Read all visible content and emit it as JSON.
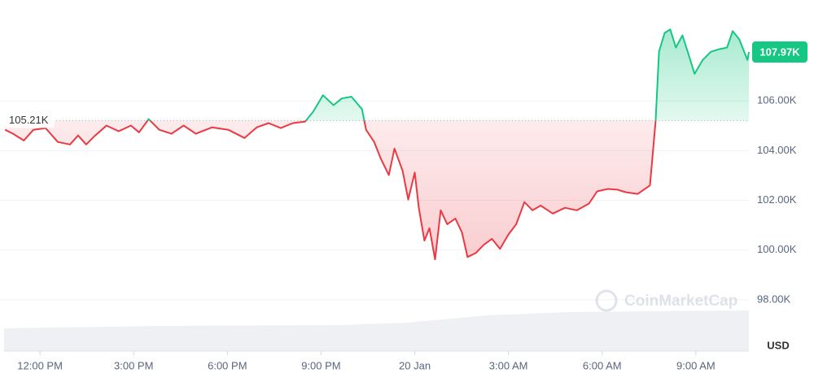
{
  "chart_data": {
    "type": "line",
    "x": [
      -1.12,
      -0.86,
      -0.52,
      -0.21,
      0.18,
      0.57,
      0.96,
      1.22,
      1.48,
      1.74,
      2.13,
      2.52,
      2.91,
      3.17,
      3.48,
      3.82,
      4.21,
      4.6,
      4.99,
      5.51,
      6.03,
      6.55,
      6.94,
      7.32,
      7.71,
      8.1,
      8.49,
      8.75,
      9.06,
      9.4,
      9.66,
      9.97,
      10.31,
      10.44,
      10.7,
      10.91,
      11.17,
      11.35,
      11.61,
      11.79,
      12.0,
      12.13,
      12.31,
      12.47,
      12.65,
      12.83,
      13.04,
      13.3,
      13.51,
      13.69,
      13.95,
      14.21,
      14.47,
      14.73,
      14.99,
      15.25,
      15.51,
      15.77,
      16.03,
      16.42,
      16.81,
      17.19,
      17.58,
      17.84,
      18.18,
      18.49,
      18.75,
      19.14,
      19.53,
      19.71,
      19.82,
      20.0,
      20.18,
      20.36,
      20.57,
      20.78,
      20.96,
      21.22,
      21.48,
      21.74,
      22.0,
      22.18,
      22.39,
      22.65,
      22.7
    ],
    "values": [
      104840,
      104680,
      104410,
      104840,
      104910,
      104350,
      104250,
      104610,
      104250,
      104580,
      105010,
      104780,
      105010,
      104740,
      105270,
      104840,
      104680,
      105010,
      104680,
      104940,
      104840,
      104510,
      104940,
      105110,
      104910,
      105110,
      105170,
      105570,
      106230,
      105830,
      106100,
      106170,
      105670,
      104840,
      104350,
      103690,
      103020,
      104080,
      103190,
      102030,
      103120,
      101700,
      100380,
      100880,
      99620,
      101600,
      101040,
      101270,
      100710,
      99720,
      99880,
      100210,
      100450,
      100050,
      100610,
      101040,
      101930,
      101600,
      101790,
      101470,
      101700,
      101600,
      101870,
      102360,
      102460,
      102430,
      102330,
      102260,
      102600,
      105170,
      107980,
      108740,
      108880,
      108150,
      108640,
      107820,
      107090,
      107650,
      107980,
      108080,
      108150,
      108810,
      108480,
      107650,
      107970
    ],
    "up_color": "#16c784",
    "down_color": "#ea3943",
    "baseline": {
      "value": 105210,
      "label": "105.21K"
    },
    "current": {
      "value": 107970,
      "label": "107.97K"
    },
    "xlim": [
      -1.15,
      22.75
    ],
    "xticks": [
      {
        "value": 0,
        "label": "12:00 PM"
      },
      {
        "value": 3,
        "label": "3:00 PM"
      },
      {
        "value": 6,
        "label": "6:00 PM"
      },
      {
        "value": 9,
        "label": "9:00 PM"
      },
      {
        "value": 12,
        "label": "20 Jan"
      },
      {
        "value": 15,
        "label": "3:00 AM"
      },
      {
        "value": 18,
        "label": "6:00 AM"
      },
      {
        "value": 21,
        "label": "9:00 AM"
      }
    ],
    "ylim": [
      96000,
      109900
    ],
    "yticks": [
      {
        "value": 98000,
        "label": "98.00K"
      },
      {
        "value": 100000,
        "label": "100.00K"
      },
      {
        "value": 102000,
        "label": "102.00K"
      },
      {
        "value": 104000,
        "label": "104.00K"
      },
      {
        "value": 106000,
        "label": "106.00K"
      }
    ],
    "y_unit": "USD",
    "watermark": "CoinMarketCap",
    "grid": true
  }
}
